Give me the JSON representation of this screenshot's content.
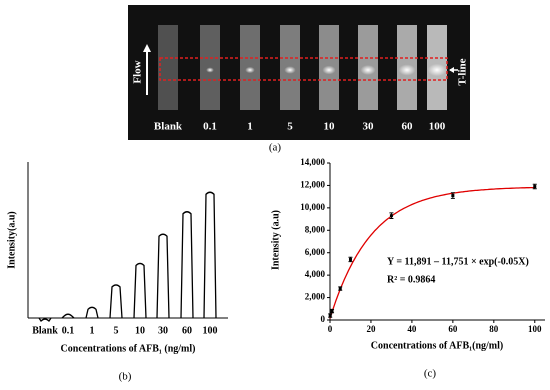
{
  "image_panel": {
    "caption": "(a)",
    "flow_label": "Flow",
    "tline_label": "T-line",
    "strip_labels": [
      "Blank",
      "0.1",
      "1",
      "5",
      "10",
      "30",
      "60",
      "100"
    ]
  },
  "chart_data": [
    {
      "type": "peaks",
      "caption": "(b)",
      "ylabel": "Intensity(a.u)",
      "xlabel": "Concentrations of AFB₁ (ng/ml)",
      "categories": [
        "Blank",
        "0.1",
        "1",
        "5",
        "10",
        "30",
        "60",
        "100"
      ],
      "values": [
        0,
        5,
        12,
        35,
        57,
        87,
        110,
        130
      ],
      "ylim": [
        0,
        160
      ],
      "color": "#000000"
    },
    {
      "type": "scatter",
      "caption": "(c)",
      "ylabel": "Intensity (a.u)",
      "xlabel": "Concentrations of AFB₁(ng/ml)",
      "x": [
        0.1,
        1,
        5,
        10,
        30,
        60,
        100
      ],
      "values": [
        400,
        800,
        2800,
        5400,
        9300,
        11100,
        11900
      ],
      "errors": [
        150,
        150,
        150,
        200,
        250,
        250,
        200
      ],
      "color": "#000000",
      "xlim": [
        0,
        105
      ],
      "xticks": [
        0,
        20,
        40,
        60,
        80,
        100
      ],
      "ylim": [
        0,
        14000
      ],
      "yticks": [
        0,
        {
          "value": 2000,
          "label": "2,000"
        },
        {
          "value": 4000,
          "label": "4,000"
        },
        {
          "value": 6000,
          "label": "6,000"
        },
        {
          "value": 8000,
          "label": "8,000"
        },
        {
          "value": 10000,
          "label": "10,000"
        },
        {
          "value": 12000,
          "label": "12,000"
        },
        {
          "value": 14000,
          "label": "14,000"
        }
      ],
      "fit": {
        "a": 11891,
        "b": 11751,
        "k": -0.05,
        "color": "#e00000"
      },
      "annotations": [
        "Y = 11,891 – 11,751 × exp(-0.05X)",
        "R² = 0.9864"
      ]
    }
  ]
}
